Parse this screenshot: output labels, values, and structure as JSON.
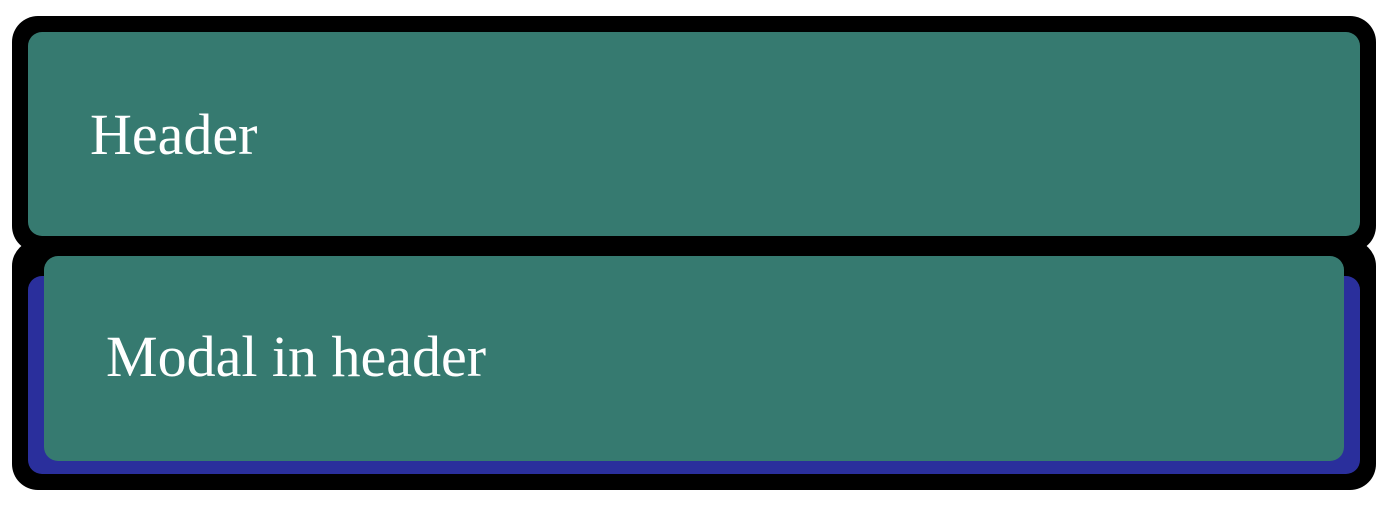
{
  "header": {
    "title": "Header"
  },
  "modal": {
    "title": "Modal in header"
  },
  "colors": {
    "panel_fill": "#367a70",
    "frame_border": "#000000",
    "modal_underlay": "#2a2f9c",
    "text": "#ffffff"
  }
}
